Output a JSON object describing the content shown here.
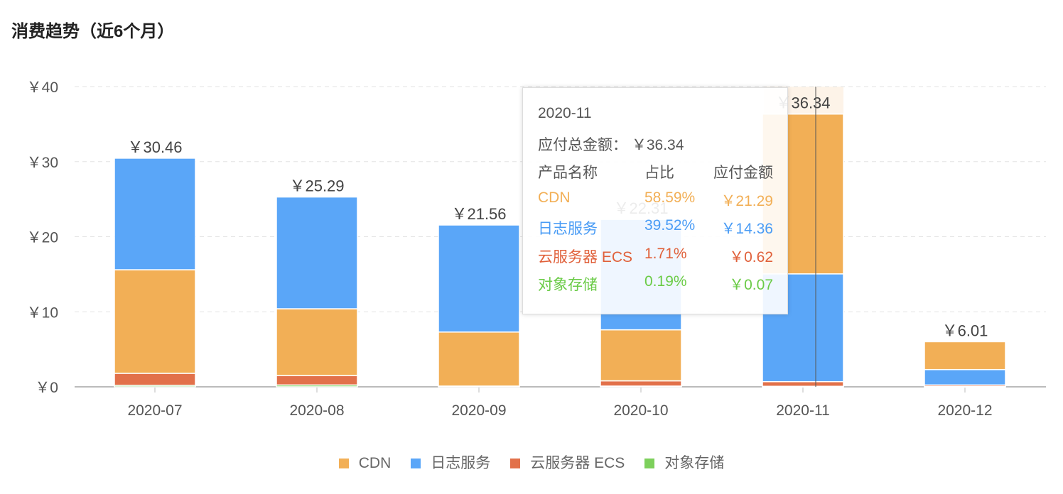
{
  "title": "消费趋势（近6个月）",
  "chart_data": {
    "type": "bar",
    "stacked": true,
    "categories": [
      "2020-07",
      "2020-08",
      "2020-09",
      "2020-10",
      "2020-11",
      "2020-12"
    ],
    "totals": [
      "￥30.46",
      "￥25.29",
      "￥21.56",
      "￥22.31",
      "￥36.34",
      "￥6.01"
    ],
    "series": [
      {
        "name": "CDN",
        "color": "#f2af56",
        "values": [
          13.8,
          8.9,
          7.2,
          6.8,
          21.29,
          3.71
        ]
      },
      {
        "name": "日志服务",
        "color": "#5aa6f8",
        "values": [
          14.86,
          14.89,
          14.26,
          14.71,
          14.36,
          2.05
        ]
      },
      {
        "name": "云服务器 ECS",
        "color": "#e2714a",
        "values": [
          1.6,
          1.25,
          0.0,
          0.7,
          0.62,
          0.2
        ]
      },
      {
        "name": "对象存储",
        "color": "#7dd05c",
        "values": [
          0.2,
          0.25,
          0.1,
          0.1,
          0.07,
          0.05
        ]
      }
    ],
    "yticks": [
      "￥0",
      "￥10",
      "￥20",
      "￥30",
      "￥40"
    ],
    "ylim": [
      0,
      40
    ],
    "grid": true,
    "legend": "bottom"
  },
  "tooltip": {
    "month": "2020-11",
    "total_label": "应付总金额：",
    "total": "￥36.34",
    "headers": [
      "产品名称",
      "占比",
      "应付金额"
    ],
    "rows": [
      {
        "name": "CDN",
        "pct": "58.59%",
        "amount": "￥21.29",
        "color": "#f2af56"
      },
      {
        "name": "日志服务",
        "pct": "39.52%",
        "amount": "￥14.36",
        "color": "#4a9cf5"
      },
      {
        "name": "云服务器 ECS",
        "pct": "1.71%",
        "amount": "￥0.62",
        "color": "#e0603a"
      },
      {
        "name": "对象存储",
        "pct": "0.19%",
        "amount": "￥0.07",
        "color": "#6acb46"
      }
    ]
  }
}
